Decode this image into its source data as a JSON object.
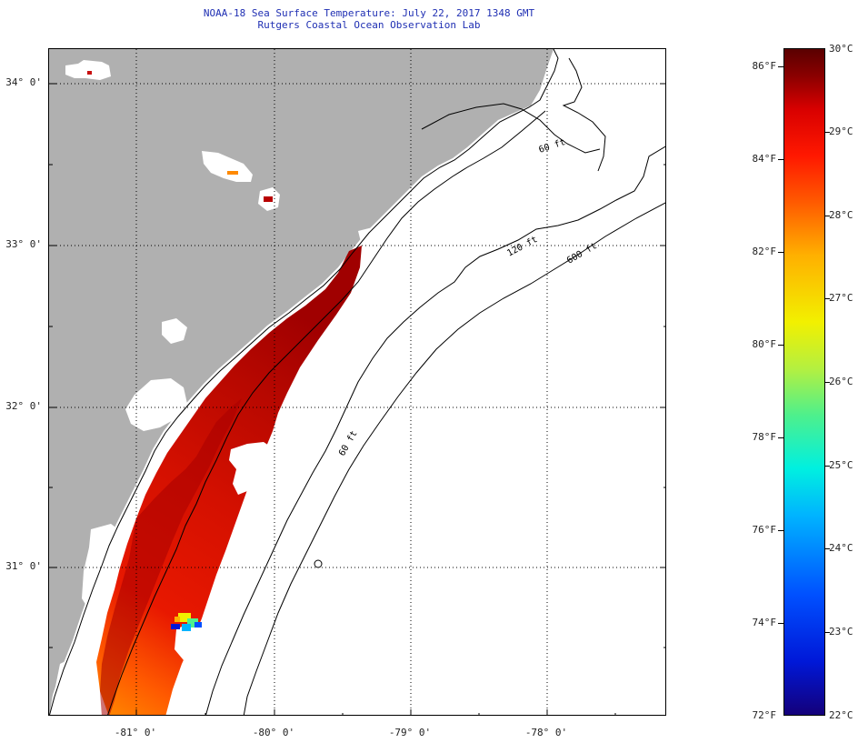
{
  "title": {
    "line1": "NOAA-18 Sea Surface Temperature:  July 22, 2017 1348 GMT",
    "line2": "Rutgers Coastal Ocean Observation Lab"
  },
  "map": {
    "latitude_labels": [
      "34° 0'",
      "33° 0'",
      "32° 0'",
      "31° 0'"
    ],
    "longitude_labels": [
      "-81° 0'",
      "-80° 0'",
      "-79° 0'",
      "-78° 0'"
    ],
    "isobath_labels": [
      "120 ft",
      "600 ft",
      "60 ft",
      "60 ft"
    ],
    "colors": {
      "land": "#b0b0b0",
      "cloud": "#ffffff",
      "contour": "#000000",
      "grid": "#000000"
    }
  },
  "colorbar": {
    "fahrenheit_labels": [
      "86°F",
      "84°F",
      "82°F",
      "80°F",
      "78°F",
      "76°F",
      "74°F",
      "72°F"
    ],
    "celsius_labels": [
      "30°C",
      "29°C",
      "28°C",
      "27°C",
      "26°C",
      "25°C",
      "24°C",
      "23°C",
      "22°C"
    ],
    "colors": [
      "#14007a",
      "#0018d8",
      "#0050ff",
      "#00b4ff",
      "#00f0e0",
      "#4ef08c",
      "#b4f040",
      "#f2f000",
      "#ffb000",
      "#ff5a00",
      "#ff1800",
      "#d80000",
      "#8a0000",
      "#5a0000"
    ]
  }
}
